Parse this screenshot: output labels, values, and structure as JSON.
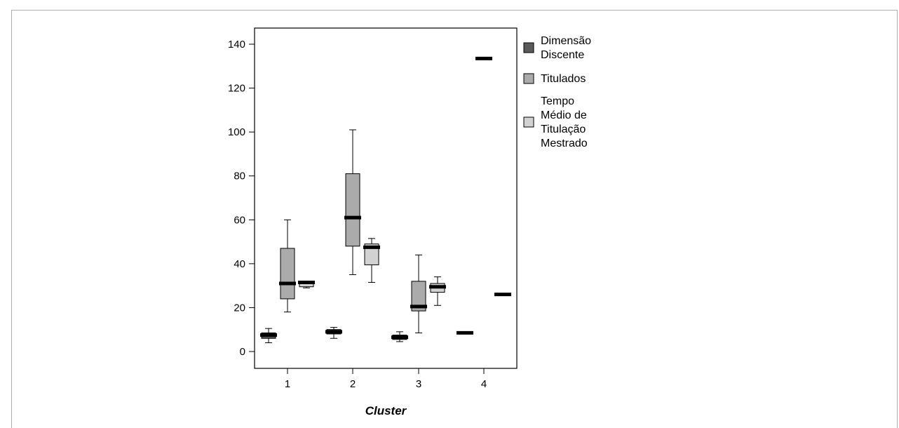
{
  "chart_data": {
    "type": "boxplot",
    "xlabel": "Cluster",
    "ylabel": "",
    "ylim": [
      -8,
      148
    ],
    "yticks": [
      0,
      20,
      40,
      60,
      80,
      100,
      120,
      140
    ],
    "categories": [
      "1",
      "2",
      "3",
      "4"
    ],
    "legend_position": "right",
    "series": [
      {
        "name": "Dimensão Discente",
        "color": "#5a5a5a",
        "boxes": [
          {
            "category": "1",
            "min": 4,
            "q1": 6,
            "median": 7.5,
            "q3": 8.5,
            "max": 10.5
          },
          {
            "category": "2",
            "min": 6,
            "q1": 8,
            "median": 9,
            "q3": 10,
            "max": 11
          },
          {
            "category": "3",
            "min": 4.5,
            "q1": 5.5,
            "median": 6.5,
            "q3": 7.5,
            "max": 9
          },
          {
            "category": "4",
            "min": 8,
            "q1": 8,
            "median": 8.5,
            "q3": 9,
            "max": 9
          }
        ]
      },
      {
        "name": "Titulados",
        "color": "#ababab",
        "boxes": [
          {
            "category": "1",
            "min": 18,
            "q1": 24,
            "median": 31,
            "q3": 47,
            "max": 60
          },
          {
            "category": "2",
            "min": 35,
            "q1": 48,
            "median": 61,
            "q3": 81,
            "max": 101
          },
          {
            "category": "3",
            "min": 8.5,
            "q1": 18.5,
            "median": 20.5,
            "q3": 32,
            "max": 44
          },
          {
            "category": "4",
            "min": 133,
            "q1": 133,
            "median": 133.5,
            "q3": 134,
            "max": 134
          }
        ]
      },
      {
        "name": "Tempo Médio de Titulação Mestrado",
        "color": "#d2d2d2",
        "boxes": [
          {
            "category": "1",
            "min": 29,
            "q1": 29.5,
            "median": 31.5,
            "q3": 32,
            "max": 32
          },
          {
            "category": "2",
            "min": 31.5,
            "q1": 39.5,
            "median": 47.5,
            "q3": 49,
            "max": 51.5
          },
          {
            "category": "3",
            "min": 21,
            "q1": 27,
            "median": 29.5,
            "q3": 31,
            "max": 34
          },
          {
            "category": "4",
            "min": 25.5,
            "q1": 25.5,
            "median": 26,
            "q3": 26.5,
            "max": 26.5
          }
        ]
      }
    ]
  },
  "legend": [
    {
      "lines": [
        "Dimensão",
        "Discente"
      ],
      "color": "#5a5a5a"
    },
    {
      "lines": [
        "Titulados"
      ],
      "color": "#ababab"
    },
    {
      "lines": [
        "Tempo",
        "Médio de",
        "Titulação",
        "Mestrado"
      ],
      "color": "#d2d2d2"
    }
  ]
}
